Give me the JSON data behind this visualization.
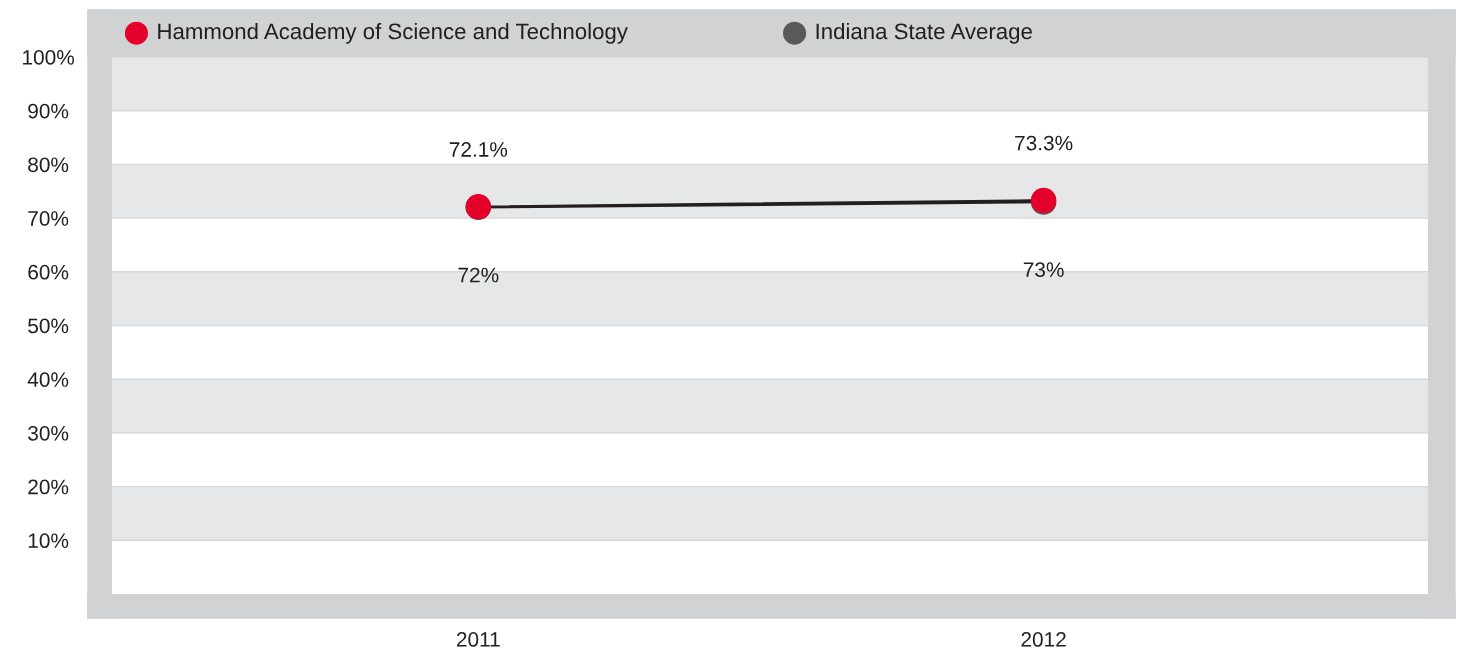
{
  "chart_data": {
    "type": "line",
    "categories": [
      "2011",
      "2012"
    ],
    "series": [
      {
        "name": "Hammond Academy of Science and Technology",
        "color": "#e4002b",
        "values": [
          72.1,
          73.3
        ],
        "value_labels": [
          "72.1%",
          "73.3%"
        ]
      },
      {
        "name": "Indiana State Average",
        "color": "#58595b",
        "values": [
          72,
          73
        ],
        "value_labels": [
          "72%",
          "73%"
        ]
      }
    ],
    "ylim": [
      0,
      100
    ],
    "yticks": [
      {
        "value": 10,
        "label": "10%"
      },
      {
        "value": 20,
        "label": "20%"
      },
      {
        "value": 30,
        "label": "30%"
      },
      {
        "value": 40,
        "label": "40%"
      },
      {
        "value": 50,
        "label": "50%"
      },
      {
        "value": 60,
        "label": "60%"
      },
      {
        "value": 70,
        "label": "70%"
      },
      {
        "value": 80,
        "label": "80%"
      },
      {
        "value": 90,
        "label": "90%"
      },
      {
        "value": 100,
        "label": "100%"
      }
    ],
    "grid": "y",
    "legend": "top left",
    "marker": "circle",
    "line_style": "solid"
  }
}
